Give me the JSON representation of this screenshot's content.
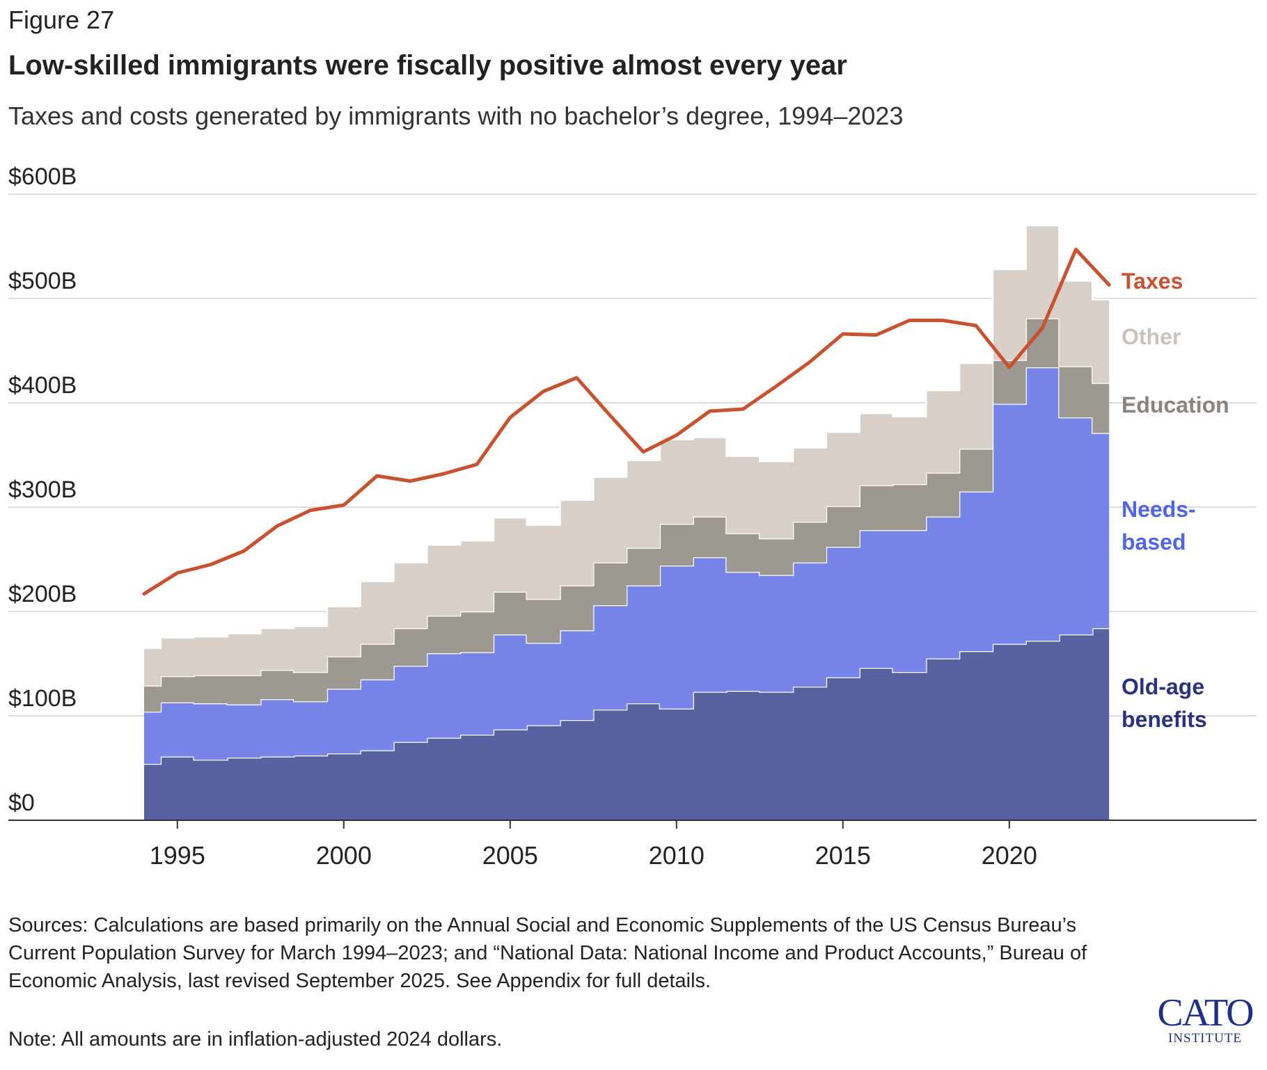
{
  "header": {
    "figure_label": "Figure 27",
    "title": "Low-skilled immigrants were fiscally positive almost every year",
    "subtitle": "Taxes and costs generated by immigrants with no bachelor’s degree, 1994–2023"
  },
  "chart_data": {
    "type": "area",
    "stacked": true,
    "step": true,
    "x": [
      1994,
      1995,
      1996,
      1997,
      1998,
      1999,
      2000,
      2001,
      2002,
      2003,
      2004,
      2005,
      2006,
      2007,
      2008,
      2009,
      2010,
      2011,
      2012,
      2013,
      2014,
      2015,
      2016,
      2017,
      2018,
      2019,
      2020,
      2021,
      2022,
      2023
    ],
    "ylim": [
      0,
      600
    ],
    "yticks": [
      0,
      100,
      200,
      300,
      400,
      500,
      600
    ],
    "ytick_labels": [
      "$0",
      "$100B",
      "$200B",
      "$300B",
      "$400B",
      "$500B",
      "$600B"
    ],
    "xticks": [
      1995,
      2000,
      2005,
      2010,
      2015,
      2020
    ],
    "xtick_labels": [
      "1995",
      "2000",
      "2005",
      "2010",
      "2015",
      "2020"
    ],
    "grid": true,
    "series": [
      {
        "name": "Old-age benefits",
        "label_lines": [
          "Old-age",
          "benefits"
        ],
        "kind": "stacked-area",
        "color": "#5962a0",
        "label_color": "#2a3180",
        "values": [
          54,
          61,
          58,
          60,
          61,
          62,
          64,
          67,
          75,
          79,
          82,
          87,
          91,
          96,
          106,
          112,
          107,
          123,
          124,
          123,
          128,
          137,
          146,
          142,
          155,
          162,
          169,
          172,
          178,
          184
        ]
      },
      {
        "name": "Needs-based",
        "label_lines": [
          "Needs-",
          "based"
        ],
        "kind": "stacked-area",
        "color": "#7784e8",
        "label_color": "#4f64e6",
        "values": [
          50,
          52,
          54,
          51,
          55,
          52,
          62,
          68,
          73,
          81,
          79,
          91,
          79,
          86,
          100,
          113,
          137,
          129,
          114,
          112,
          119,
          125,
          132,
          136,
          136,
          153,
          230,
          262,
          208,
          187
        ]
      },
      {
        "name": "Education",
        "label_lines": [
          "Education"
        ],
        "kind": "stacked-area",
        "color": "#9e9892",
        "label_color": "#8a847e",
        "values": [
          25,
          25,
          27,
          28,
          28,
          28,
          31,
          34,
          36,
          36,
          39,
          41,
          42,
          43,
          41,
          36,
          40,
          39,
          37,
          35,
          39,
          39,
          43,
          44,
          42,
          41,
          42,
          47,
          49,
          48
        ]
      },
      {
        "name": "Other",
        "label_lines": [
          "Other"
        ],
        "kind": "stacked-area",
        "color": "#d8d0c8",
        "label_color": "#cbc3bb",
        "values": [
          36,
          37,
          37,
          40,
          40,
          44,
          48,
          60,
          63,
          68,
          68,
          71,
          71,
          82,
          82,
          84,
          81,
          76,
          74,
          74,
          71,
          71,
          69,
          65,
          79,
          82,
          87,
          89,
          82,
          80
        ]
      },
      {
        "name": "Taxes",
        "label_lines": [
          "Taxes"
        ],
        "kind": "line",
        "color": "#c9512d",
        "label_color": "#c9512d",
        "values": [
          217,
          237,
          245,
          258,
          282,
          297,
          302,
          330,
          325,
          332,
          341,
          386,
          411,
          424,
          388,
          353,
          369,
          392,
          394,
          416,
          439,
          466,
          465,
          479,
          479,
          474,
          434,
          472,
          547,
          513
        ]
      }
    ]
  },
  "footer": {
    "sources": "Sources: Calculations are based primarily on the Annual Social and Economic Supplements of the US Census Bureau’s Current Population Survey for March 1994–2023; and “National Data: National Income and Product Accounts,” Bureau of Economic Analysis, last revised September 2025. See Appendix for full details.",
    "note": "Note: All amounts are in inflation-adjusted 2024 dollars.",
    "logo_main": "CATO",
    "logo_sub": "INSTITUTE"
  }
}
